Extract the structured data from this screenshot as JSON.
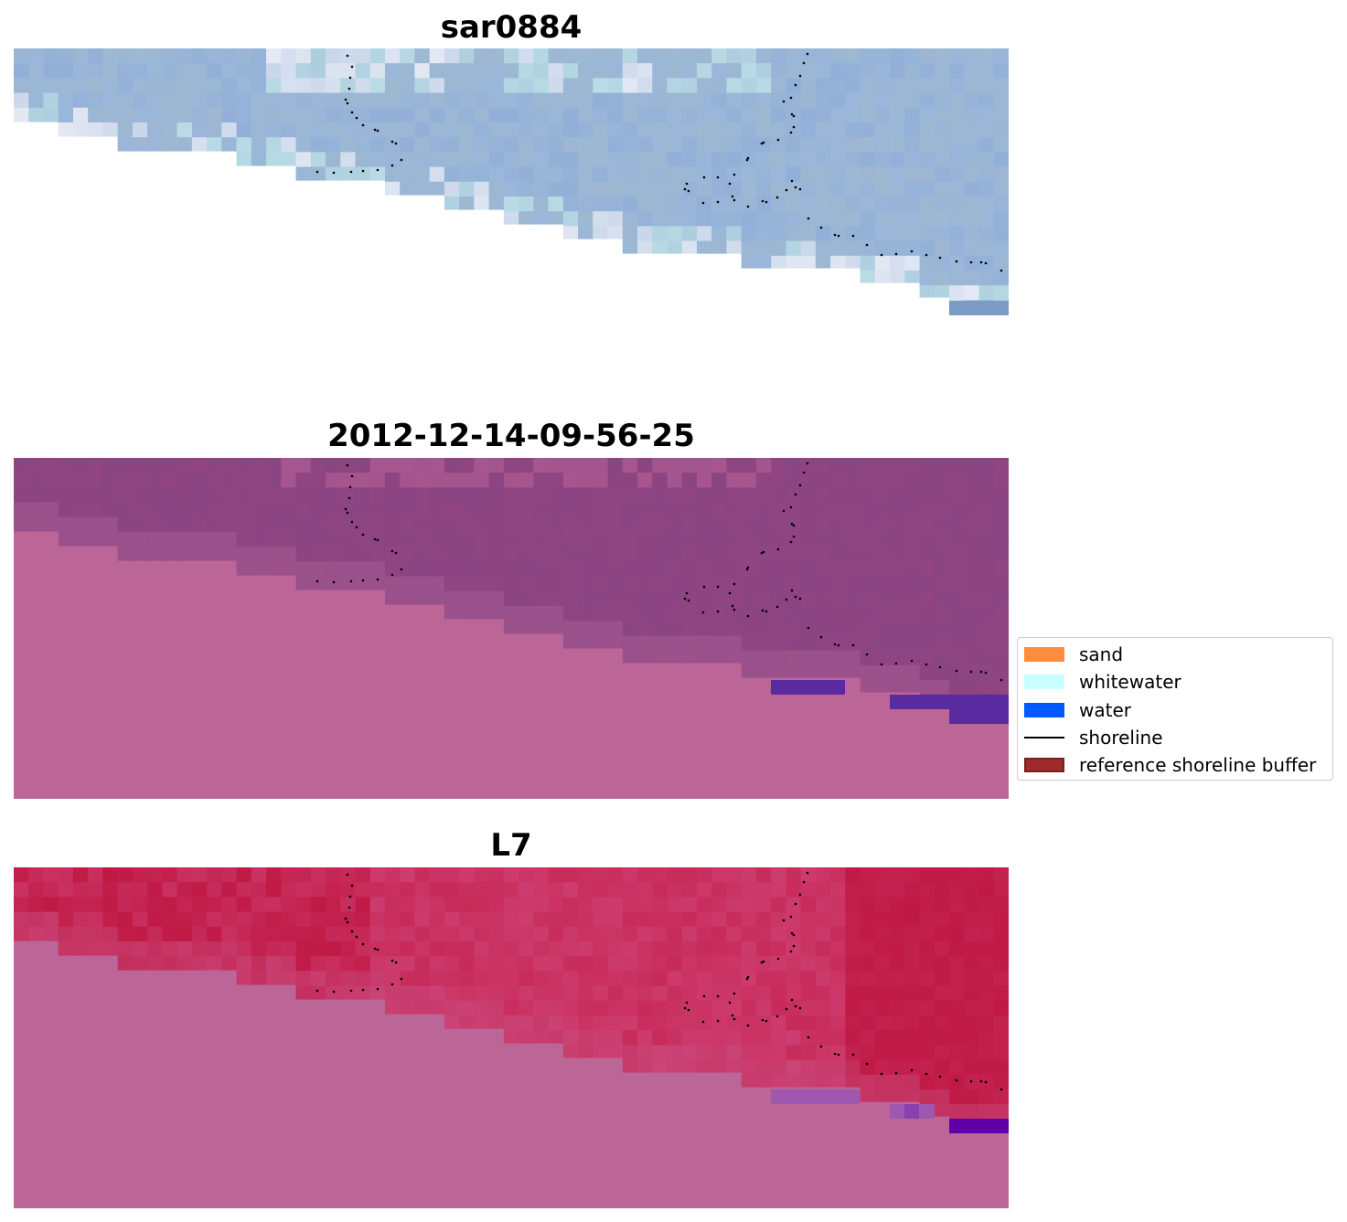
{
  "panels": [
    {
      "title": "sar0884",
      "style": "sar"
    },
    {
      "title": "2012-12-14-09-56-25",
      "style": "purple"
    },
    {
      "title": "L7",
      "style": "red"
    }
  ],
  "legend": {
    "items": [
      {
        "label": "sand",
        "color": "#ff8c3e",
        "kind": "patch"
      },
      {
        "label": "whitewater",
        "color": "#c8ffff",
        "kind": "patch"
      },
      {
        "label": "water",
        "color": "#005aff",
        "kind": "patch"
      },
      {
        "label": "shoreline",
        "color": "#000000",
        "kind": "line"
      },
      {
        "label": "reference shoreline buffer",
        "color": "#9e2a2a",
        "kind": "patch"
      }
    ]
  },
  "colors": {
    "sar_base": "#9ab6d8",
    "purple_base": "#8a4582",
    "red_base": "#c01945",
    "nodata_pink": "#bc6698",
    "water_dark": "#5a2aa0",
    "shoreline": "#000000"
  }
}
